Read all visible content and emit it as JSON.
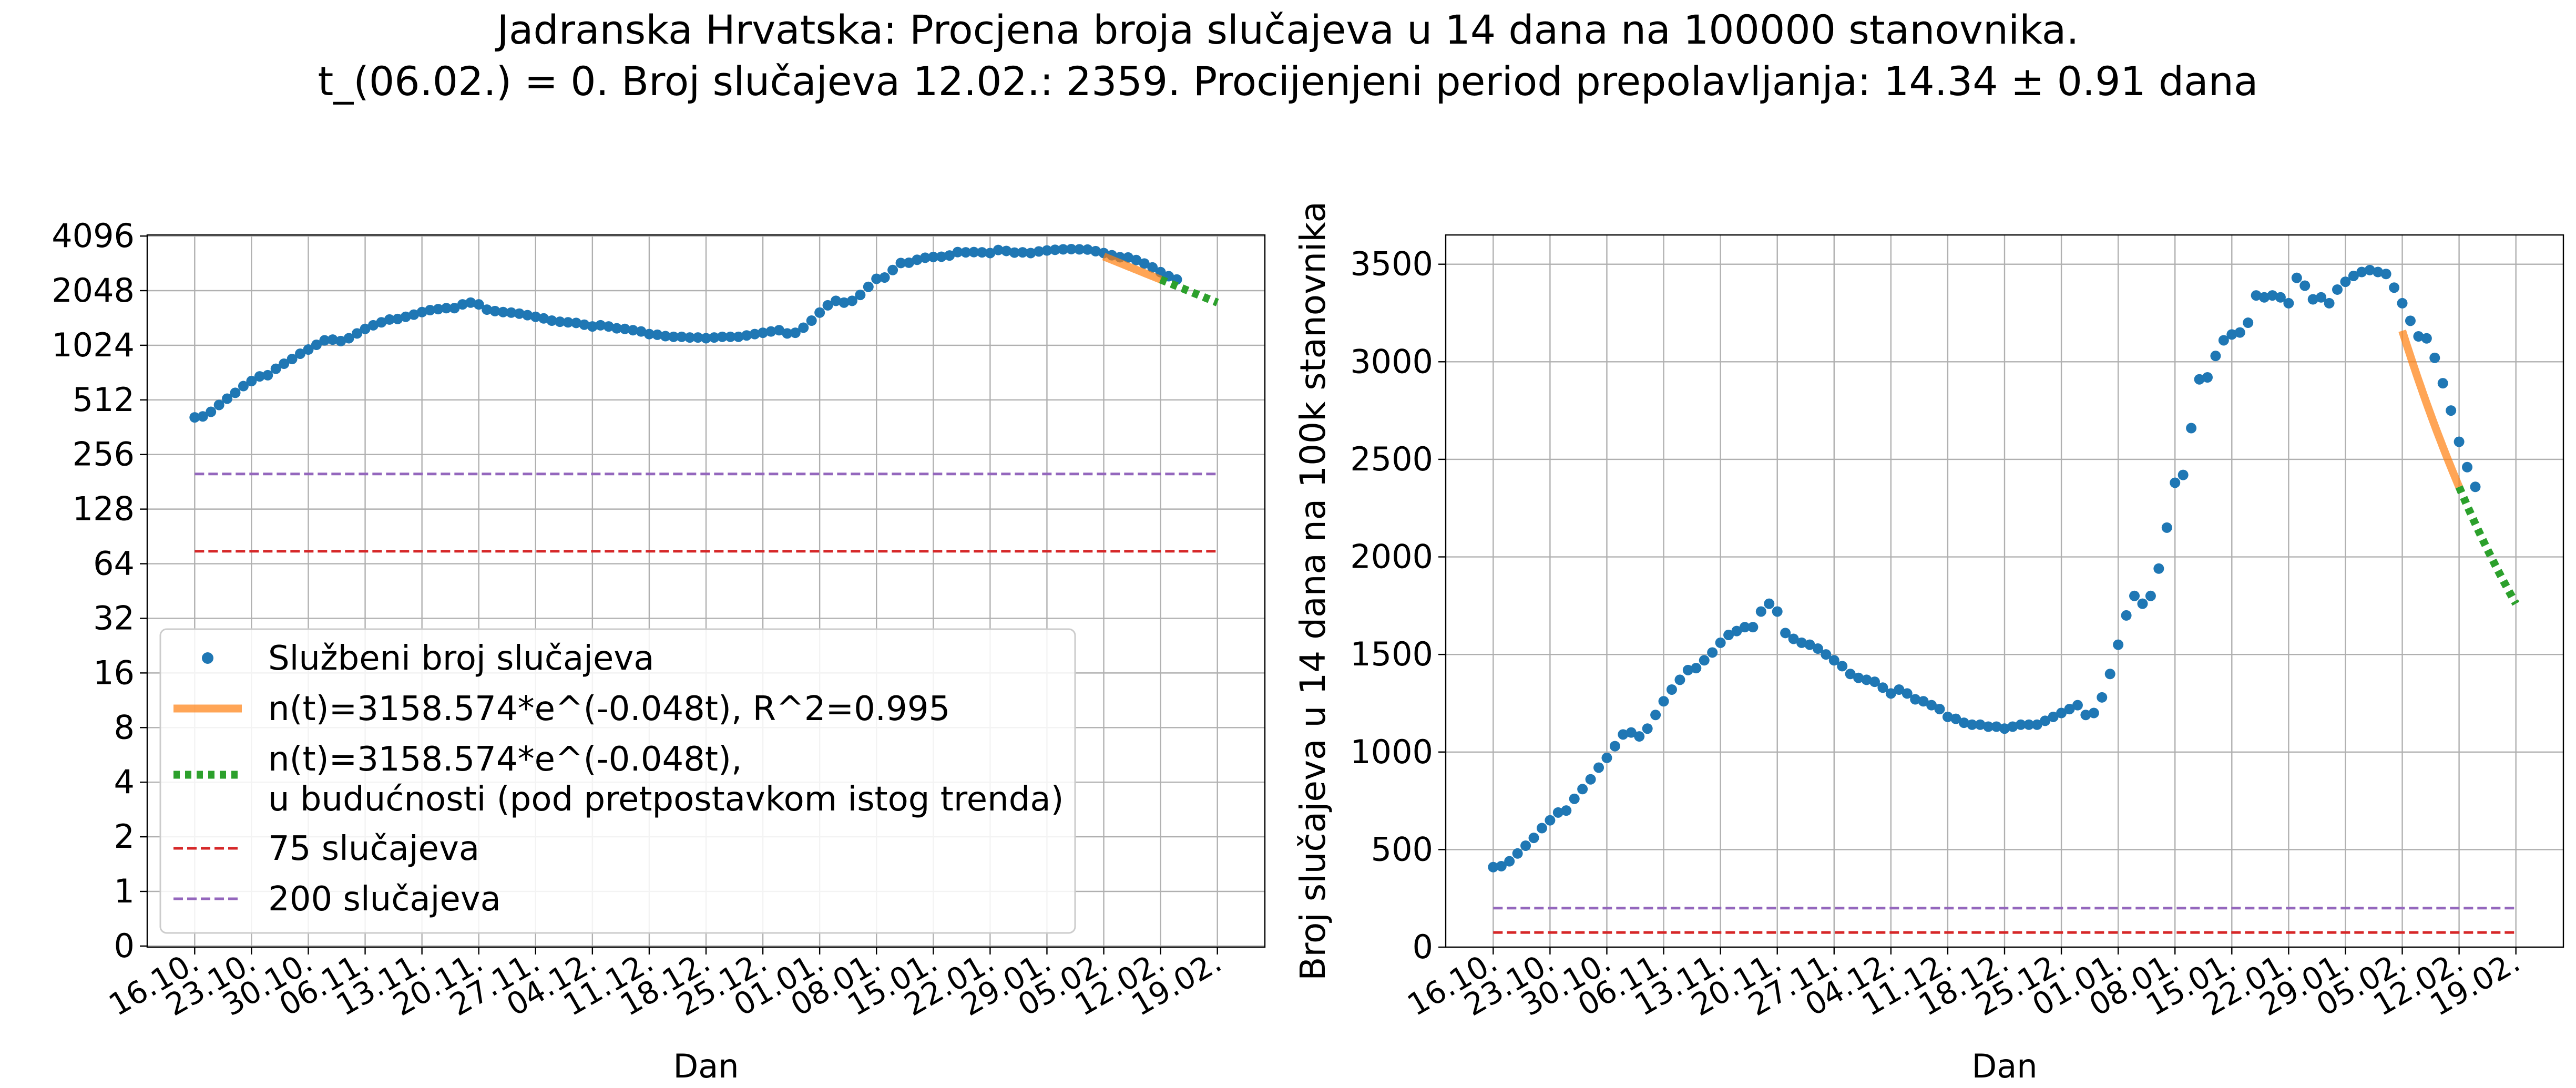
{
  "suptitle": {
    "line1": "Jadranska Hrvatska: Procjena broja slučajeva u 14 dana na 100000 stanovnika.",
    "line2": "t_(06.02.) = 0. Broj slučajeva 12.02.: 2359. Procijenjeni period prepolavljanja: 14.34 ± 0.91 dana"
  },
  "colors": {
    "official": "#1f77b4",
    "fit": "#ff7f0e",
    "future": "#2ca02c",
    "line75": "#d62728",
    "line200": "#9467bd",
    "grid": "#b0b0b0"
  },
  "chart_data": [
    {
      "type": "scatter",
      "yscale": "log2",
      "xlabel": "Dan",
      "ylabel": "Broj slučajeva u 14 dana na 100k stanovnika",
      "xticklabels": [
        "16.10.",
        "23.10.",
        "30.10.",
        "06.11.",
        "13.11.",
        "20.11.",
        "27.11.",
        "04.12.",
        "11.12.",
        "18.12.",
        "25.12.",
        "01.01.",
        "08.01.",
        "15.01.",
        "22.01.",
        "29.01.",
        "05.02.",
        "12.02.",
        "19.02."
      ],
      "yticklabels": [
        "0",
        "1",
        "2",
        "4",
        "8",
        "16",
        "32",
        "64",
        "128",
        "256",
        "512",
        "1024",
        "2048",
        "4096"
      ],
      "grid": true,
      "legend_position": "lower-left",
      "legend": {
        "official": "Službeni broj slučajeva",
        "fit": "n(t)=3158.574*e^(-0.048t), R^2=0.995",
        "future_line1": "n(t)=3158.574*e^(-0.048t),",
        "future_line2": "u budućnosti (pod pretpostavkom istog trenda)",
        "l75": "75 slučajeva",
        "l200": "200 slučajeva"
      }
    },
    {
      "type": "scatter",
      "yscale": "linear",
      "xlabel": "Dan",
      "ylabel": "Broj slučajeva u 14 dana na 100k stanovnika",
      "xticklabels": [
        "16.10.",
        "23.10.",
        "30.10.",
        "06.11.",
        "13.11.",
        "20.11.",
        "27.11.",
        "04.12.",
        "11.12.",
        "18.12.",
        "25.12.",
        "01.01.",
        "08.01.",
        "15.01.",
        "22.01.",
        "29.01.",
        "05.02.",
        "12.02.",
        "19.02."
      ],
      "yticklabels": [
        "0",
        "500",
        "1000",
        "1500",
        "2000",
        "2500",
        "3000",
        "3500"
      ],
      "ylim": [
        0,
        3650
      ],
      "grid": true
    }
  ],
  "series": {
    "day_offset_start": 0,
    "official": {
      "name": "Službeni broj slučajeva",
      "values": [
        410,
        415,
        440,
        480,
        520,
        560,
        610,
        650,
        690,
        700,
        760,
        810,
        860,
        920,
        970,
        1030,
        1090,
        1100,
        1080,
        1120,
        1190,
        1260,
        1320,
        1370,
        1420,
        1430,
        1470,
        1510,
        1560,
        1600,
        1620,
        1640,
        1640,
        1720,
        1760,
        1720,
        1610,
        1580,
        1560,
        1550,
        1530,
        1500,
        1470,
        1440,
        1400,
        1380,
        1370,
        1360,
        1330,
        1300,
        1320,
        1300,
        1270,
        1260,
        1240,
        1220,
        1180,
        1170,
        1150,
        1140,
        1140,
        1130,
        1130,
        1120,
        1130,
        1140,
        1140,
        1140,
        1160,
        1180,
        1200,
        1220,
        1240,
        1190,
        1200,
        1280,
        1400,
        1550,
        1700,
        1800,
        1760,
        1800,
        1940,
        2150,
        2380,
        2420,
        2660,
        2910,
        2920,
        3030,
        3110,
        3140,
        3150,
        3200,
        3340,
        3330,
        3340,
        3330,
        3300,
        3430,
        3390,
        3320,
        3330,
        3300,
        3370,
        3410,
        3440,
        3460,
        3470,
        3460,
        3450,
        3380,
        3300,
        3210,
        3130,
        3120,
        3020,
        2890,
        2750,
        2590,
        2460,
        2359
      ]
    },
    "fit": {
      "x": [
        112,
        119
      ],
      "y": [
        3158.574,
        2359
      ]
    },
    "future": {
      "x": [
        119,
        126
      ],
      "y": [
        2359,
        1760
      ]
    },
    "line75": {
      "y": 75
    },
    "line200": {
      "y": 200
    },
    "x_range_days": [
      0,
      126
    ]
  }
}
